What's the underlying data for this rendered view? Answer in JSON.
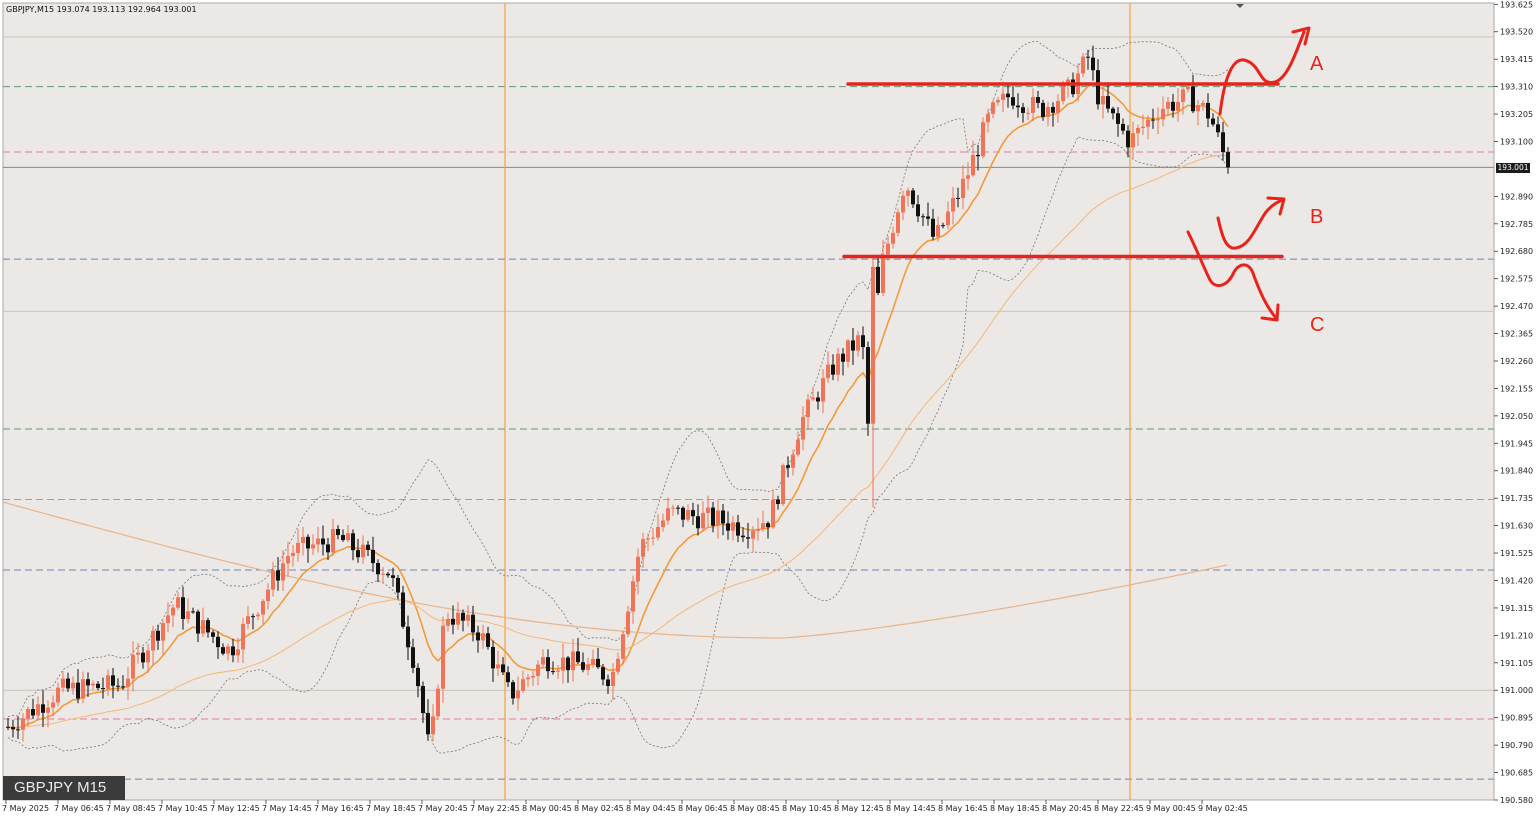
{
  "header": {
    "info": "GBPJPY,M15  193.074 193.113 192.964 193.001"
  },
  "symbol_badge": "GBPJPY M15",
  "current_price": "193.001",
  "colors": {
    "background": "#ebe8e5",
    "bull": "#f07457",
    "bear": "#111111",
    "ma_fast": "#f39a3a",
    "ma_slow": "#f6b777",
    "ma_long": "#e8b48a",
    "bollinger": "#777777",
    "session_line": "#f4a23a",
    "annotation": "#e8231b",
    "level_green": "#5e9a77",
    "level_pink": "#e77aa9",
    "level_blue": "#6b87b7"
  },
  "chart_data": {
    "type": "candlestick",
    "ylim": [
      190.58,
      193.63
    ],
    "y_ticks": [
      "193.625",
      "193.520",
      "193.415",
      "193.310",
      "193.205",
      "193.100",
      "192.890",
      "192.785",
      "192.680",
      "192.575",
      "192.470",
      "192.365",
      "192.260",
      "192.155",
      "192.050",
      "191.945",
      "191.840",
      "191.735",
      "191.630",
      "191.525",
      "191.420",
      "191.315",
      "191.210",
      "191.105",
      "191.000",
      "190.895",
      "190.790",
      "190.685",
      "190.580"
    ],
    "x_ticks": [
      "7 May 2025",
      "7 May 06:45",
      "7 May 08:45",
      "7 May 10:45",
      "7 May 12:45",
      "7 May 14:45",
      "7 May 16:45",
      "7 May 18:45",
      "7 May 20:45",
      "7 May 22:45",
      "8 May 00:45",
      "8 May 02:45",
      "8 May 04:45",
      "8 May 06:45",
      "8 May 08:45",
      "8 May 10:45",
      "8 May 12:45",
      "8 May 14:45",
      "8 May 16:45",
      "8 May 18:45",
      "8 May 20:45",
      "8 May 22:45",
      "9 May 00:45",
      "9 May 02:45"
    ],
    "levels": [
      {
        "value": 193.31,
        "style": "green"
      },
      {
        "value": 193.06,
        "style": "pink"
      },
      {
        "value": 192.65,
        "style": "blue"
      },
      {
        "value": 192.0,
        "style": "green"
      },
      {
        "value": 191.73,
        "style": "pink"
      },
      {
        "value": 191.46,
        "style": "blue"
      },
      {
        "value": 190.89,
        "style": "pink"
      },
      {
        "value": 190.66,
        "style": "blue"
      },
      {
        "value": 191.0,
        "style": "grey"
      },
      {
        "value": 192.45,
        "style": "grey"
      },
      {
        "value": 193.5,
        "style": "grey"
      }
    ],
    "current_price": 193.001,
    "resistance": 193.32,
    "support": 192.66,
    "session_breaks": [
      "7 May 22:45",
      "8 May 22:45"
    ],
    "annotations": [
      "A",
      "B",
      "C"
    ]
  }
}
